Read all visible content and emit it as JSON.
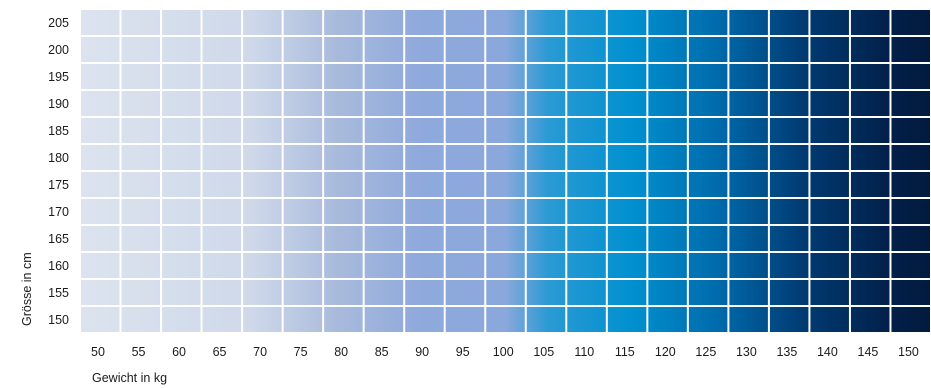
{
  "chart_data": {
    "type": "heatmap",
    "title": "",
    "xlabel": "Gewicht in kg",
    "ylabel": "Grösse in cm",
    "x": [
      50,
      55,
      60,
      65,
      70,
      75,
      80,
      85,
      90,
      95,
      100,
      105,
      110,
      115,
      120,
      125,
      130,
      135,
      140,
      145,
      150
    ],
    "y": [
      205,
      200,
      195,
      190,
      185,
      180,
      175,
      170,
      165,
      160,
      155,
      150
    ],
    "xlim": [
      50,
      150
    ],
    "ylim": [
      150,
      205
    ],
    "grid": true,
    "legend": "none",
    "color_stops": [
      {
        "x": 50,
        "color": "#dce3ef"
      },
      {
        "x": 70,
        "color": "#cfd9ea"
      },
      {
        "x": 80,
        "color": "#a9bbdc"
      },
      {
        "x": 90,
        "color": "#8fa9dc"
      },
      {
        "x": 100,
        "color": "#8aa8dc"
      },
      {
        "x": 105,
        "color": "#2b9ad4"
      },
      {
        "x": 115,
        "color": "#0090cf"
      },
      {
        "x": 125,
        "color": "#006aab"
      },
      {
        "x": 135,
        "color": "#013b72"
      },
      {
        "x": 145,
        "color": "#02204a"
      },
      {
        "x": 150,
        "color": "#021a3e"
      }
    ]
  }
}
